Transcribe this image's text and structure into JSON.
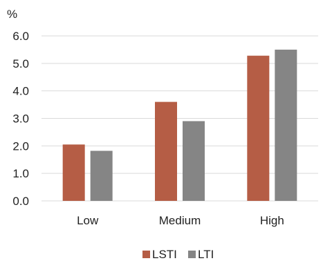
{
  "chart_data": {
    "type": "bar",
    "y_unit": "%",
    "categories": [
      "Low",
      "Medium",
      "High"
    ],
    "series": [
      {
        "name": "LSTI",
        "color": "#b55d45",
        "values": [
          2.05,
          3.6,
          5.28
        ]
      },
      {
        "name": "LTI",
        "color": "#858585",
        "values": [
          1.82,
          2.9,
          5.5
        ]
      }
    ],
    "ylim": [
      0,
      6
    ],
    "y_ticks": [
      "0.0",
      "1.0",
      "2.0",
      "3.0",
      "4.0",
      "5.0",
      "6.0"
    ],
    "grid": true,
    "legend_position": "bottom"
  }
}
